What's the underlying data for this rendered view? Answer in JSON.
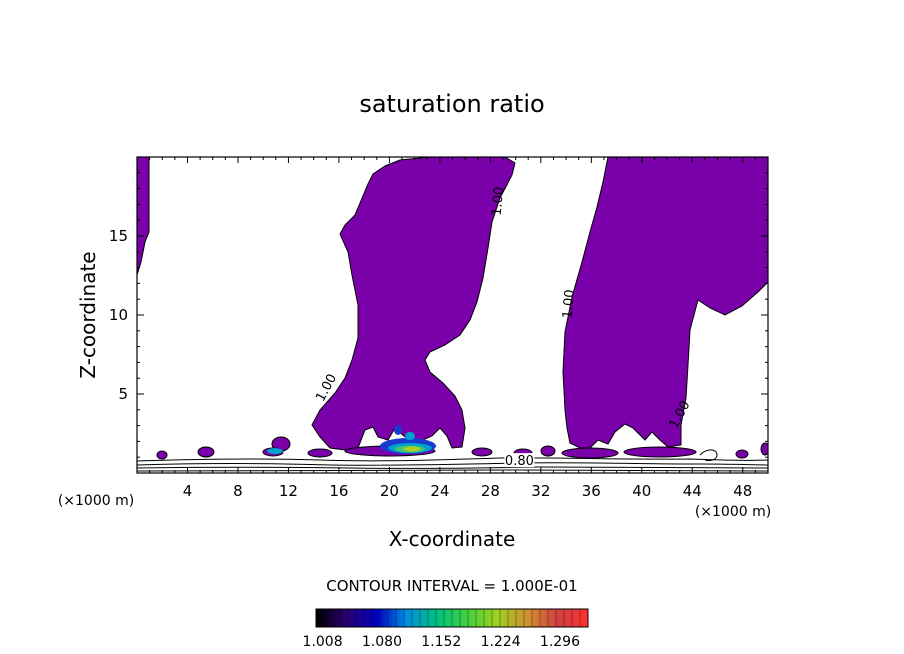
{
  "chart_data": {
    "type": "contour",
    "title": "saturation ratio",
    "xlabel": "X-coordinate",
    "ylabel": "Z-coordinate",
    "x_unit_label": "(×1000 m)",
    "y_unit_label": "(×1000 m)",
    "xlim": [
      0,
      50
    ],
    "ylim": [
      0,
      20
    ],
    "x_ticks": [
      4,
      8,
      12,
      16,
      20,
      24,
      28,
      32,
      36,
      40,
      44,
      48
    ],
    "y_ticks": [
      5,
      10,
      15
    ],
    "contour_interval_text": "CONTOUR INTERVAL = 1.000E-01",
    "contour_labels": [
      {
        "text": "1.00",
        "x": 15.0,
        "z": 5.4
      },
      {
        "text": "1.00",
        "x": 28.6,
        "z": 17.2
      },
      {
        "text": "1.00",
        "x": 34.2,
        "z": 10.7
      },
      {
        "text": "1.00",
        "x": 43.0,
        "z": 3.7
      },
      {
        "text": "0.80",
        "x": 30.3,
        "z": 0.75
      }
    ],
    "fill_color": "#7a00aa",
    "colorbar": {
      "tick_labels": [
        "1.008",
        "1.080",
        "1.152",
        "1.224",
        "1.296"
      ],
      "range": [
        1.0,
        1.33
      ],
      "colors": [
        "#000000",
        "#2a0070",
        "#0000c0",
        "#0090e0",
        "#00c080",
        "#40d040",
        "#a0d020",
        "#d09030",
        "#d04040",
        "#ff3030"
      ]
    },
    "grid": false,
    "legend": "bottom"
  }
}
